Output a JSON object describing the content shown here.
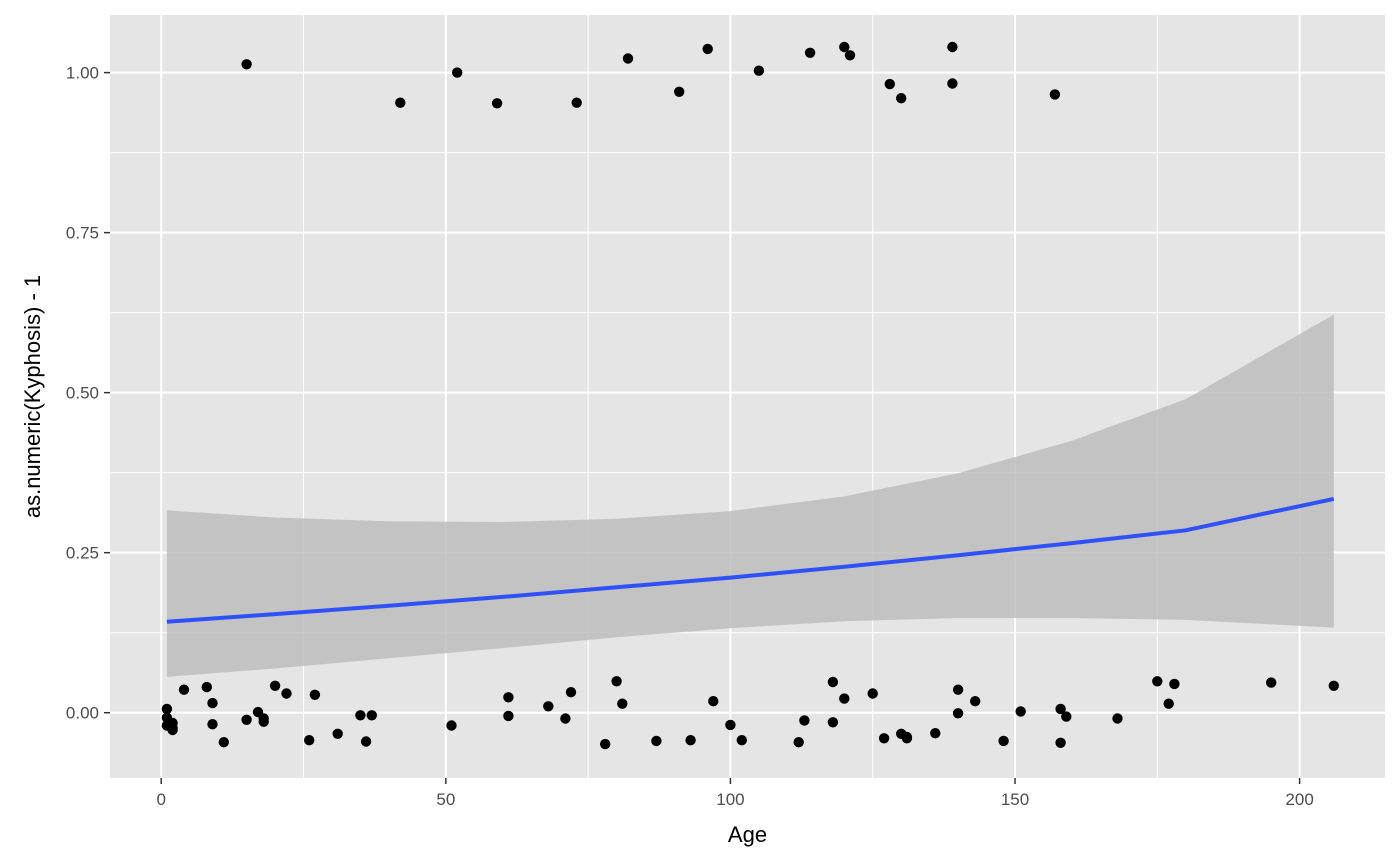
{
  "chart_data": {
    "type": "scatter",
    "title": "",
    "xlabel": "Age",
    "ylabel": "as.numeric(Kyphosis) - 1",
    "xlim": [
      -9,
      215
    ],
    "ylim": [
      -0.102,
      1.09
    ],
    "x_ticks": [
      0,
      50,
      100,
      150,
      200
    ],
    "x_tick_labels": [
      "0",
      "50",
      "100",
      "150",
      "200"
    ],
    "y_ticks": [
      0,
      0.25,
      0.5,
      0.75,
      1.0
    ],
    "y_tick_labels": [
      "0.00",
      "0.25",
      "0.50",
      "0.75",
      "1.00"
    ],
    "grid": true,
    "colors": {
      "panel_background": "#e5e5e5",
      "grid_line": "#ffffff",
      "points": "#000000",
      "fit_line": "#3050f8",
      "confidence_band": "#bdbdbd"
    },
    "points": [
      {
        "x": 15,
        "y": 1.013
      },
      {
        "x": 42,
        "y": 0.953
      },
      {
        "x": 52,
        "y": 1.0
      },
      {
        "x": 59,
        "y": 0.952
      },
      {
        "x": 73,
        "y": 0.953
      },
      {
        "x": 82,
        "y": 1.022
      },
      {
        "x": 91,
        "y": 0.97
      },
      {
        "x": 96,
        "y": 1.037
      },
      {
        "x": 105,
        "y": 1.003
      },
      {
        "x": 114,
        "y": 1.031
      },
      {
        "x": 120,
        "y": 1.04
      },
      {
        "x": 121,
        "y": 1.027
      },
      {
        "x": 128,
        "y": 0.982
      },
      {
        "x": 130,
        "y": 0.96
      },
      {
        "x": 139,
        "y": 1.04
      },
      {
        "x": 139,
        "y": 0.983
      },
      {
        "x": 157,
        "y": 0.966
      },
      {
        "x": 1,
        "y": -0.008
      },
      {
        "x": 1,
        "y": -0.02
      },
      {
        "x": 1,
        "y": 0.006
      },
      {
        "x": 2,
        "y": -0.016
      },
      {
        "x": 2,
        "y": -0.024
      },
      {
        "x": 2,
        "y": -0.027
      },
      {
        "x": 4,
        "y": 0.036
      },
      {
        "x": 8,
        "y": 0.04
      },
      {
        "x": 9,
        "y": 0.015
      },
      {
        "x": 9,
        "y": -0.018
      },
      {
        "x": 11,
        "y": -0.046
      },
      {
        "x": 15,
        "y": -0.011
      },
      {
        "x": 17,
        "y": 0.001
      },
      {
        "x": 18,
        "y": -0.009
      },
      {
        "x": 18,
        "y": -0.014
      },
      {
        "x": 20,
        "y": 0.042
      },
      {
        "x": 22,
        "y": 0.03
      },
      {
        "x": 26,
        "y": -0.043
      },
      {
        "x": 27,
        "y": 0.028
      },
      {
        "x": 31,
        "y": -0.033
      },
      {
        "x": 35,
        "y": -0.004
      },
      {
        "x": 36,
        "y": -0.045
      },
      {
        "x": 37,
        "y": -0.004
      },
      {
        "x": 51,
        "y": -0.02
      },
      {
        "x": 61,
        "y": -0.005
      },
      {
        "x": 61,
        "y": 0.024
      },
      {
        "x": 68,
        "y": 0.01
      },
      {
        "x": 71,
        "y": -0.009
      },
      {
        "x": 72,
        "y": 0.032
      },
      {
        "x": 78,
        "y": -0.049
      },
      {
        "x": 80,
        "y": 0.049
      },
      {
        "x": 81,
        "y": 0.014
      },
      {
        "x": 87,
        "y": -0.044
      },
      {
        "x": 93,
        "y": -0.043
      },
      {
        "x": 97,
        "y": 0.018
      },
      {
        "x": 100,
        "y": -0.019
      },
      {
        "x": 102,
        "y": -0.043
      },
      {
        "x": 112,
        "y": -0.046
      },
      {
        "x": 113,
        "y": -0.012
      },
      {
        "x": 118,
        "y": 0.048
      },
      {
        "x": 118,
        "y": -0.015
      },
      {
        "x": 120,
        "y": 0.022
      },
      {
        "x": 125,
        "y": 0.03
      },
      {
        "x": 127,
        "y": -0.04
      },
      {
        "x": 130,
        "y": -0.033
      },
      {
        "x": 131,
        "y": -0.04
      },
      {
        "x": 131,
        "y": -0.038
      },
      {
        "x": 136,
        "y": -0.032
      },
      {
        "x": 140,
        "y": 0.036
      },
      {
        "x": 140,
        "y": -0.001
      },
      {
        "x": 143,
        "y": 0.018
      },
      {
        "x": 148,
        "y": -0.044
      },
      {
        "x": 151,
        "y": 0.002
      },
      {
        "x": 158,
        "y": 0.006
      },
      {
        "x": 158,
        "y": -0.047
      },
      {
        "x": 159,
        "y": -0.006
      },
      {
        "x": 168,
        "y": -0.009
      },
      {
        "x": 175,
        "y": 0.049
      },
      {
        "x": 177,
        "y": 0.014
      },
      {
        "x": 178,
        "y": 0.045
      },
      {
        "x": 195,
        "y": 0.047
      },
      {
        "x": 206,
        "y": 0.042
      }
    ],
    "fit_line": {
      "x": [
        1,
        20,
        40,
        60,
        80,
        100,
        120,
        140,
        160,
        180,
        206
      ],
      "y": [
        0.142,
        0.154,
        0.167,
        0.181,
        0.196,
        0.211,
        0.228,
        0.246,
        0.265,
        0.285,
        0.334
      ]
    },
    "confidence_band": {
      "x": [
        1,
        20,
        40,
        60,
        80,
        100,
        120,
        140,
        160,
        180,
        206
      ],
      "upper": [
        0.316,
        0.305,
        0.299,
        0.298,
        0.303,
        0.315,
        0.338,
        0.374,
        0.425,
        0.49,
        0.622
      ],
      "lower": [
        0.056,
        0.069,
        0.085,
        0.101,
        0.118,
        0.132,
        0.143,
        0.148,
        0.148,
        0.145,
        0.133
      ]
    }
  }
}
